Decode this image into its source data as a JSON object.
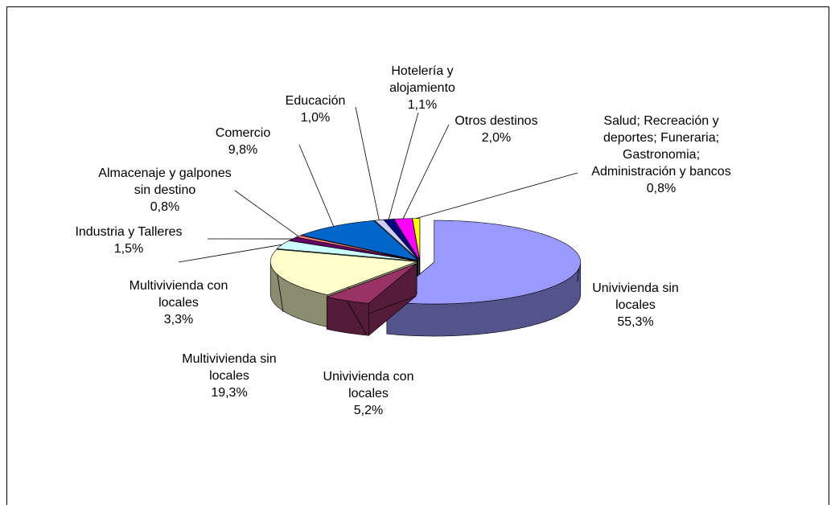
{
  "chart_data": {
    "type": "pie",
    "categories": [
      "Univivienda sin locales",
      "Univivienda con locales",
      "Multivivienda sin locales",
      "Multivivienda con locales",
      "Industria y Talleres",
      "Almacenaje y galpones sin destino",
      "Comercio",
      "Educación",
      "Hotelería y alojamiento",
      "Otros destinos",
      "Salud; Recreación y deportes; Funeraria; Gastronomia; Administración y bancos"
    ],
    "values": [
      55.3,
      5.2,
      19.3,
      3.3,
      1.5,
      0.8,
      9.8,
      1.0,
      1.1,
      2.0,
      0.8
    ],
    "value_labels": [
      "55,3%",
      "5,2%",
      "19,3%",
      "3,3%",
      "1,5%",
      "0,8%",
      "9,8%",
      "1,0%",
      "1,1%",
      "2,0%",
      "0,8%"
    ],
    "colors": [
      "#9999ff",
      "#993366",
      "#ffffcc",
      "#ccffff",
      "#660066",
      "#ff8080",
      "#0066cc",
      "#ccccff",
      "#000080",
      "#ff00ff",
      "#ffff00"
    ]
  }
}
